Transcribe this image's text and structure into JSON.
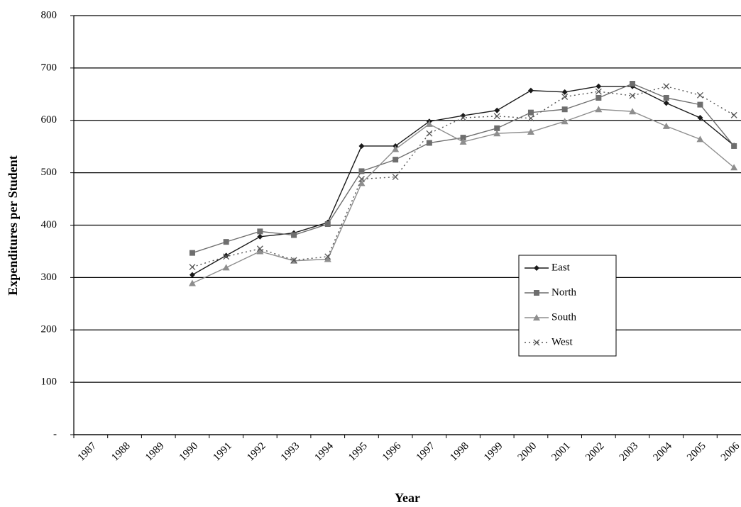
{
  "chart_data": {
    "type": "line",
    "x_label": "Year",
    "y_label": "Expenditures per Student",
    "categories": [
      "1987",
      "1988",
      "1989",
      "1990",
      "1991",
      "1992",
      "1993",
      "1994",
      "1995",
      "1996",
      "1997",
      "1998",
      "1999",
      "2000",
      "2001",
      "2002",
      "2003",
      "2004",
      "2005",
      "2006"
    ],
    "series": [
      {
        "name": "East",
        "color": "#1a1a1a",
        "marker": "diamond",
        "dash": "solid",
        "values": [
          null,
          null,
          null,
          305,
          342,
          378,
          385,
          405,
          551,
          551,
          598,
          609,
          619,
          657,
          654,
          665,
          665,
          633,
          605,
          552
        ]
      },
      {
        "name": "North",
        "color": "#6e6e6e",
        "marker": "square",
        "dash": "solid",
        "values": [
          null,
          null,
          null,
          347,
          368,
          388,
          381,
          402,
          503,
          525,
          557,
          567,
          585,
          615,
          621,
          643,
          670,
          643,
          630,
          551
        ]
      },
      {
        "name": "South",
        "color": "#8e8e8e",
        "marker": "triangle",
        "dash": "solid",
        "values": [
          null,
          null,
          null,
          289,
          319,
          350,
          332,
          335,
          480,
          545,
          593,
          559,
          575,
          578,
          598,
          621,
          617,
          589,
          564,
          510
        ]
      },
      {
        "name": "West",
        "color": "#555555",
        "marker": "x",
        "dash": "dotted",
        "values": [
          null,
          null,
          null,
          320,
          340,
          355,
          333,
          340,
          488,
          492,
          575,
          605,
          608,
          604,
          645,
          655,
          647,
          665,
          648,
          610
        ]
      }
    ],
    "ylim": [
      0,
      800
    ],
    "yticks": [
      {
        "value": 0,
        "label": "-"
      },
      100,
      200,
      300,
      400,
      500,
      600,
      700,
      800
    ],
    "grid": true,
    "legend": "inside-right"
  }
}
